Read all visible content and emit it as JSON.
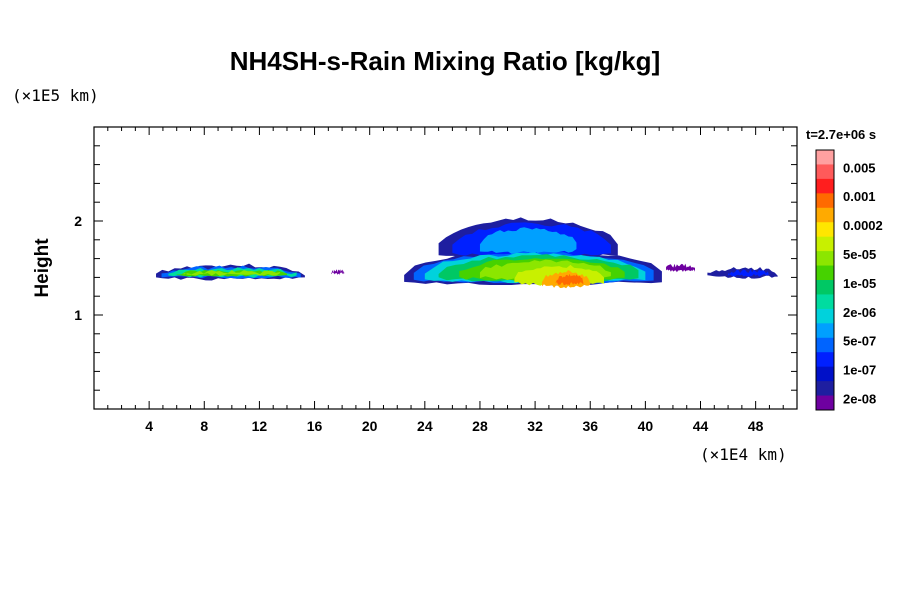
{
  "chart_data": {
    "type": "heatmap",
    "title": "NH4SH-s-Rain Mixing Ratio [kg/kg]",
    "xlabel": "",
    "ylabel": "Height",
    "x_unit": "(×1E4 km)",
    "y_unit": "(×1E5 km)",
    "time": "t=2.7e+06 s",
    "xlim": [
      0,
      51
    ],
    "ylim": [
      0,
      3
    ],
    "x_ticks": [
      4,
      8,
      12,
      16,
      20,
      24,
      28,
      32,
      36,
      40,
      44,
      48
    ],
    "y_ticks": [
      1,
      2
    ],
    "colorbar": {
      "labels": [
        "0.005",
        "0.001",
        "0.0002",
        "5e-05",
        "1e-05",
        "2e-06",
        "5e-07",
        "1e-07",
        "2e-08"
      ],
      "colors": [
        "#ffa0a0",
        "#ff5a5a",
        "#ff1e1e",
        "#ff6a00",
        "#ffaa00",
        "#ffe600",
        "#c8f000",
        "#8ce600",
        "#46d200",
        "#00c864",
        "#00dca0",
        "#00d2dc",
        "#00a0ff",
        "#0064ff",
        "#0020ff",
        "#0010c8",
        "#1e1ea0",
        "#6e00a0"
      ]
    },
    "regions": [
      {
        "x": [
          4.5,
          15.3
        ],
        "y": [
          1.38,
          1.53
        ],
        "peak": "1e-05"
      },
      {
        "x": [
          17.2,
          18.2
        ],
        "y": [
          1.44,
          1.47
        ],
        "peak": "2e-08"
      },
      {
        "x": [
          22.5,
          41.2
        ],
        "y": [
          1.26,
          2.02
        ],
        "peak": "0.0002"
      },
      {
        "x": [
          41.5,
          43.6
        ],
        "y": [
          1.47,
          1.53
        ],
        "peak": "2e-08"
      },
      {
        "x": [
          44.5,
          49.6
        ],
        "y": [
          1.4,
          1.5
        ],
        "peak": "1e-07"
      }
    ]
  }
}
